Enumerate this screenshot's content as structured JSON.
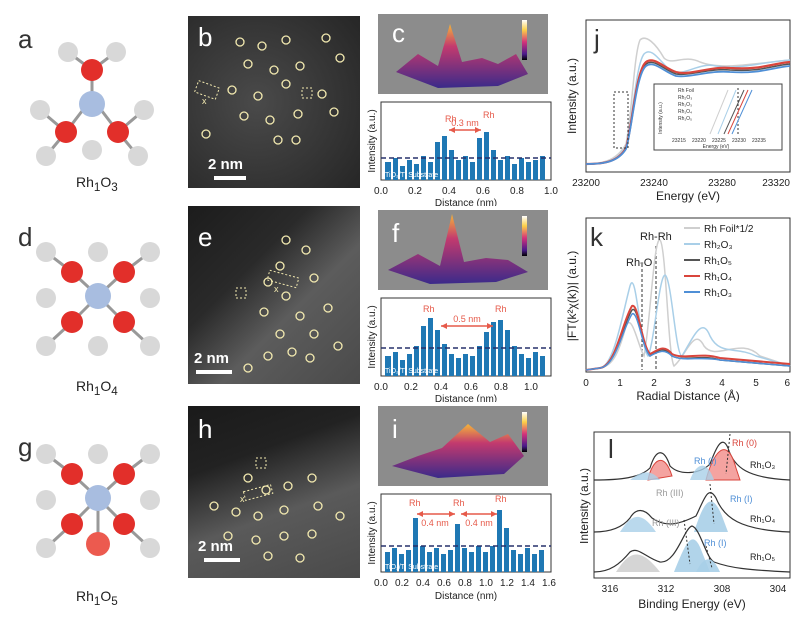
{
  "panel_letters": [
    "a",
    "b",
    "c",
    "d",
    "e",
    "f",
    "g",
    "h",
    "i",
    "j",
    "k",
    "l"
  ],
  "formulas": [
    {
      "base": "Rh",
      "sub1": "1",
      "mid": "O",
      "sub2": "3"
    },
    {
      "base": "Rh",
      "sub1": "1",
      "mid": "O",
      "sub2": "4"
    },
    {
      "base": "Rh",
      "sub1": "1",
      "mid": "O",
      "sub2": "5"
    }
  ],
  "stem": {
    "scale_label": "2 nm",
    "axis_marker": "x"
  },
  "line_profiles": {
    "ylabel": "Intensity (a.u.)",
    "xlabel": "Distance (nm)",
    "substrate_label": "TiO₂/Ti Substrate",
    "rh_label": "Rh",
    "c": {
      "spacing": "0.3 nm",
      "ticks": [
        "0.0",
        "0.2",
        "0.4",
        "0.6",
        "0.8",
        "1.0"
      ]
    },
    "f": {
      "spacing": "0.5 nm",
      "ticks": [
        "0.0",
        "0.2",
        "0.4",
        "0.6",
        "0.8",
        "1.0"
      ]
    },
    "i": {
      "spacing": "0.4 nm",
      "ticks": [
        "0.0",
        "0.2",
        "0.4",
        "0.6",
        "0.8",
        "1.0",
        "1.2",
        "1.4",
        "1.6"
      ]
    },
    "colorbar_label": "Intensity (a.u.)"
  },
  "chart_data": [
    {
      "id": "j",
      "type": "line",
      "xlabel": "Energy (eV)",
      "ylabel": "Intensity (a.u.)",
      "xticks": [
        "23200",
        "23240",
        "23280",
        "23320"
      ],
      "inset": {
        "xlabel": "Energy (eV)",
        "ylabel": "Intensity (a.u.)",
        "xticks": [
          "23215",
          "23220",
          "23225",
          "23230",
          "23235"
        ],
        "legend": [
          "Rh Foil",
          "Rh₂O₃",
          "Rh₁O₃",
          "Rh₁O₄",
          "Rh₁O₅"
        ]
      }
    },
    {
      "id": "k",
      "type": "line",
      "xlabel": "Radial Distance (Å)",
      "ylabel": "|FT(k²χ(k))| (a.u.)",
      "xticks": [
        "0",
        "1",
        "2",
        "3",
        "4",
        "5",
        "6"
      ],
      "annotations": [
        "Rh-O",
        "Rh-Rh"
      ],
      "legend": [
        {
          "name": "Rh Foil*1/2",
          "color": "#cfcfcf"
        },
        {
          "name": "Rh₂O₃",
          "color": "#a9cfe8"
        },
        {
          "name": "Rh₁O₅",
          "color": "#555555"
        },
        {
          "name": "Rh₁O₄",
          "color": "#d9453c"
        },
        {
          "name": "Rh₁O₃",
          "color": "#4f8fd6"
        }
      ]
    },
    {
      "id": "l",
      "type": "area",
      "xlabel": "Binding Energy (eV)",
      "ylabel": "Intensity (a.u.)",
      "xticks": [
        "316",
        "312",
        "308",
        "304"
      ],
      "rows": [
        {
          "name": "Rh₁O₃",
          "labels": [
            "Rh (0)",
            "Rh (I)"
          ]
        },
        {
          "name": "Rh₁O₄",
          "labels": [
            "Rh (III)",
            "Rh (I)"
          ]
        },
        {
          "name": "Rh₁O₅",
          "labels": [
            "Rh (III)",
            "Rh (I)"
          ]
        }
      ]
    }
  ]
}
